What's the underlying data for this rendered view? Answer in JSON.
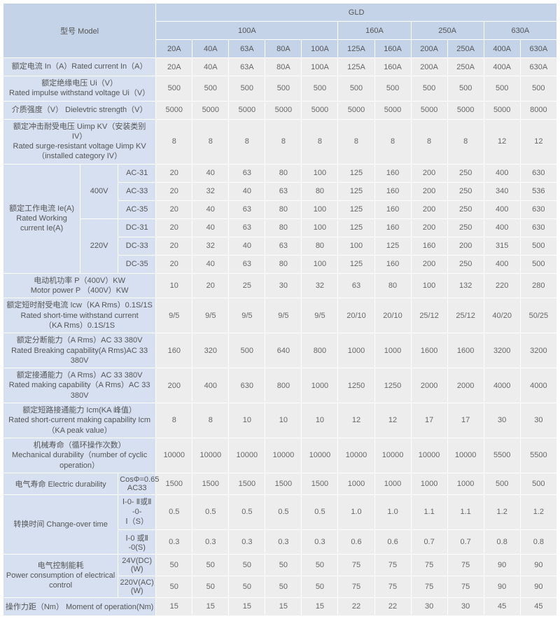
{
  "header": {
    "model": "型号 Model",
    "gld": "GLD",
    "groups": [
      "100A",
      "160A",
      "250A",
      "630A"
    ]
  },
  "cols": [
    "20A",
    "40A",
    "63A",
    "80A",
    "100A",
    "125A",
    "160A",
    "200A",
    "250A",
    "400A",
    "630A"
  ],
  "rows": [
    {
      "label": "额定电流 In（A）Rated current In（A）",
      "vals": [
        "20A",
        "40A",
        "63A",
        "80A",
        "100A",
        "125A",
        "160A",
        "200A",
        "250A",
        "400A",
        "630A"
      ]
    },
    {
      "label": "额定绝缘电压 Ui（V）\nRated impulse withstand voltage Ui（V）",
      "vals": [
        "500",
        "500",
        "500",
        "500",
        "500",
        "500",
        "500",
        "500",
        "500",
        "500",
        "500"
      ]
    },
    {
      "label": "介质强度（V） Dielevtric strength（V）",
      "vals": [
        "5000",
        "5000",
        "5000",
        "5000",
        "5000",
        "5000",
        "5000",
        "5000",
        "5000",
        "5000",
        "8000"
      ]
    },
    {
      "label": "额定冲击耐受电压 Uimp KV（安装类别 IV）\nRated surge-resistant voltage Uimp KV\n（installed category IV）",
      "vals": [
        "8",
        "8",
        "8",
        "8",
        "8",
        "8",
        "8",
        "8",
        "8",
        "12",
        "12"
      ]
    }
  ],
  "working": {
    "label": "额定工作电流 Ie(A)\nRated Working current Ie(A)",
    "v400": "400V",
    "v220": "220V",
    "sub": [
      {
        "k": "AC-31",
        "vals": [
          "20",
          "40",
          "63",
          "80",
          "100",
          "125",
          "160",
          "200",
          "250",
          "400",
          "630"
        ]
      },
      {
        "k": "AC-33",
        "vals": [
          "20",
          "32",
          "40",
          "63",
          "80",
          "125",
          "160",
          "200",
          "250",
          "340",
          "536"
        ]
      },
      {
        "k": "AC-35",
        "vals": [
          "20",
          "40",
          "63",
          "80",
          "100",
          "125",
          "160",
          "200",
          "250",
          "400",
          "630"
        ]
      },
      {
        "k": "DC-31",
        "vals": [
          "20",
          "40",
          "63",
          "80",
          "100",
          "125",
          "160",
          "200",
          "250",
          "400",
          "630"
        ]
      },
      {
        "k": "DC-33",
        "vals": [
          "20",
          "32",
          "40",
          "63",
          "80",
          "100",
          "125",
          "160",
          "200",
          "315",
          "500"
        ]
      },
      {
        "k": "DC-35",
        "vals": [
          "20",
          "40",
          "63",
          "80",
          "100",
          "125",
          "160",
          "200",
          "250",
          "400",
          "500"
        ]
      }
    ]
  },
  "rows2": [
    {
      "label": "电动机功率 P（400V）KW\nMotor power P （400V）KW",
      "vals": [
        "10",
        "20",
        "25",
        "30",
        "32",
        "63",
        "80",
        "100",
        "132",
        "220",
        "280"
      ]
    },
    {
      "label": "额定短时耐受电流 Icw（KA Rms）0.1S/1S\nRated short-time withstand current\n（KA Rms）0.1S/1S",
      "vals": [
        "9/5",
        "9/5",
        "9/5",
        "9/5",
        "9/5",
        "20/10",
        "20/10",
        "25/12",
        "25/12",
        "40/20",
        "50/25"
      ]
    },
    {
      "label": "额定分断能力（A Rms）AC 33 380V\nRated Breaking capability(A Rms)AC 33 380V",
      "vals": [
        "160",
        "320",
        "500",
        "640",
        "800",
        "1000",
        "1000",
        "1600",
        "1600",
        "3200",
        "3200"
      ]
    },
    {
      "label": "额定接通能力（A Rms）AC 33 380V\nRated making capability（A Rms）AC 33 380V",
      "vals": [
        "200",
        "400",
        "630",
        "800",
        "1000",
        "1250",
        "1250",
        "2000",
        "2000",
        "4000",
        "4000"
      ]
    },
    {
      "label": "额定短路接通能力 Icm(KA 峰值）\nRated short-current making capability Icm\n（KA peak value）",
      "vals": [
        "8",
        "8",
        "10",
        "10",
        "10",
        "12",
        "12",
        "17",
        "17",
        "30",
        "30"
      ]
    },
    {
      "label": "机械寿命（循环操作次数）\nMechanical durability（number of cyclic operation）",
      "vals": [
        "10000",
        "10000",
        "10000",
        "10000",
        "10000",
        "10000",
        "10000",
        "10000",
        "10000",
        "5500",
        "5500"
      ]
    }
  ],
  "electric": {
    "label": "电气寿命 Electric durability",
    "sub": "CosΦ=0.65 AC33",
    "vals": [
      "1500",
      "1500",
      "1500",
      "1500",
      "1500",
      "1000",
      "1000",
      "1000",
      "1000",
      "500",
      "500"
    ]
  },
  "change": {
    "label": "转换时间 Change-over time",
    "s1": "Ⅰ-0- Ⅱ或Ⅱ -0-\nⅠ（S）",
    "s2": "Ⅰ-0 或Ⅱ -0(S)",
    "v1": [
      "0.5",
      "0.5",
      "0.5",
      "0.5",
      "0.5",
      "1.0",
      "1.0",
      "1.1",
      "1.1",
      "1.2",
      "1.2"
    ],
    "v2": [
      "0.3",
      "0.3",
      "0.3",
      "0.3",
      "0.3",
      "0.6",
      "0.6",
      "0.7",
      "0.7",
      "0.8",
      "0.8"
    ]
  },
  "power": {
    "label": "电气控制能耗\nPower consumption of electrical\ncontrol",
    "s1": "24V(DC)(W)",
    "s2": "220V(AC)(W)",
    "v1": [
      "50",
      "50",
      "50",
      "50",
      "50",
      "75",
      "75",
      "75",
      "75",
      "90",
      "90"
    ],
    "v2": [
      "50",
      "50",
      "50",
      "50",
      "50",
      "75",
      "75",
      "75",
      "75",
      "90",
      "90"
    ]
  },
  "moment": {
    "label": "操作力距（Nm） Moment of operation(Nm)",
    "vals": [
      "15",
      "15",
      "15",
      "15",
      "15",
      "22",
      "22",
      "30",
      "30",
      "45",
      "45"
    ]
  }
}
